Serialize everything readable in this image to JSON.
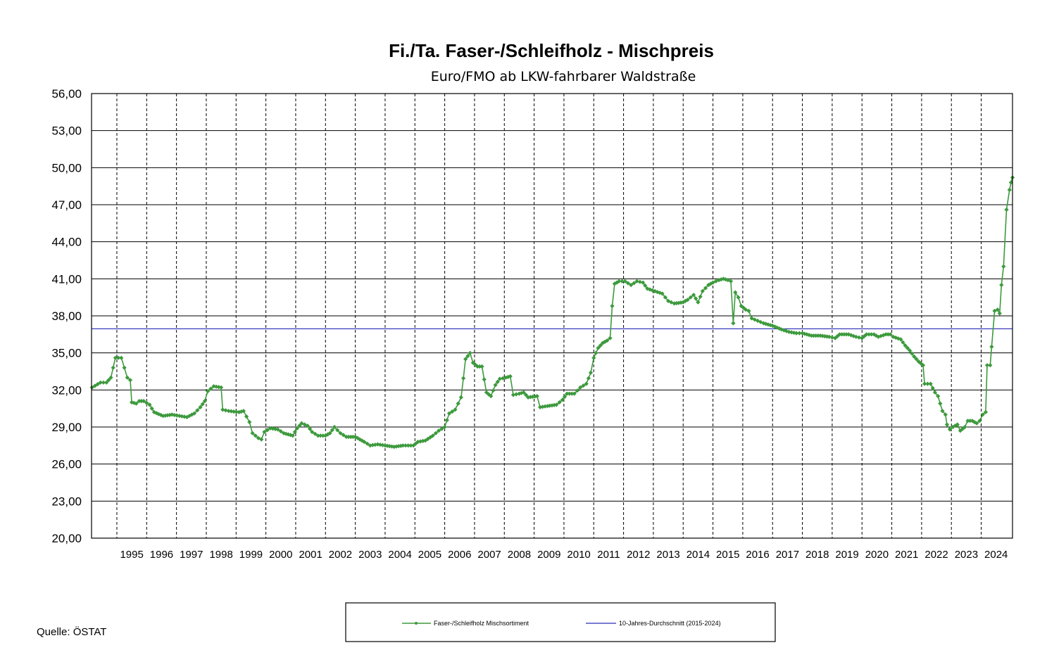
{
  "chart_data": {
    "type": "line",
    "title": "Fi./Ta. Faser-/Schleifholz - Mischpreis",
    "subtitle": "Euro/FMO ab LKW-fahrbarer Waldstraße",
    "xlabel": "",
    "ylabel": "",
    "ylim": [
      20,
      56
    ],
    "xlim": [
      1994.15,
      2025.05
    ],
    "y_ticks": [
      "20,00",
      "23,00",
      "26,00",
      "29,00",
      "32,00",
      "35,00",
      "38,00",
      "41,00",
      "44,00",
      "47,00",
      "50,00",
      "53,00",
      "56,00"
    ],
    "x_ticks": [
      "1995",
      "1996",
      "1997",
      "1998",
      "1999",
      "2000",
      "2001",
      "2002",
      "2003",
      "2004",
      "2005",
      "2006",
      "2007",
      "2008",
      "2009",
      "2010",
      "2011",
      "2012",
      "2013",
      "2014",
      "2015",
      "2016",
      "2017",
      "2018",
      "2019",
      "2020",
      "2021",
      "2022",
      "2023",
      "2024"
    ],
    "grid": true,
    "legend_position": "bottom",
    "source": "Quelle: ÖSTAT",
    "colors": {
      "series": "#3d9a3d",
      "average": "#2b2bb8"
    },
    "series": [
      {
        "name": "Faser-/Schleifholz Mischsortiment",
        "keypoints": [
          [
            1994.17,
            32.2
          ],
          [
            1994.45,
            32.6
          ],
          [
            1994.65,
            32.6
          ],
          [
            1994.8,
            33.0
          ],
          [
            1994.95,
            34.6
          ],
          [
            1995.15,
            34.6
          ],
          [
            1995.25,
            33.8
          ],
          [
            1995.35,
            33.0
          ],
          [
            1995.45,
            32.8
          ],
          [
            1995.5,
            31.0
          ],
          [
            1995.65,
            30.9
          ],
          [
            1995.75,
            31.1
          ],
          [
            1995.9,
            31.1
          ],
          [
            1996.1,
            30.8
          ],
          [
            1996.25,
            30.2
          ],
          [
            1996.55,
            29.9
          ],
          [
            1996.85,
            30.0
          ],
          [
            1997.1,
            29.9
          ],
          [
            1997.35,
            29.8
          ],
          [
            1997.6,
            30.1
          ],
          [
            1997.8,
            30.6
          ],
          [
            1997.95,
            31.1
          ],
          [
            1998.05,
            31.9
          ],
          [
            1998.25,
            32.3
          ],
          [
            1998.5,
            32.2
          ],
          [
            1998.55,
            30.4
          ],
          [
            1998.75,
            30.3
          ],
          [
            1999.1,
            30.2
          ],
          [
            1999.25,
            30.3
          ],
          [
            1999.45,
            29.4
          ],
          [
            1999.55,
            28.5
          ],
          [
            1999.75,
            28.1
          ],
          [
            1999.85,
            28.0
          ],
          [
            1999.95,
            28.6
          ],
          [
            2000.15,
            28.9
          ],
          [
            2000.4,
            28.8
          ],
          [
            2000.6,
            28.5
          ],
          [
            2000.9,
            28.3
          ],
          [
            2001.05,
            28.9
          ],
          [
            2001.2,
            29.3
          ],
          [
            2001.4,
            29.1
          ],
          [
            2001.55,
            28.6
          ],
          [
            2001.75,
            28.3
          ],
          [
            2002.0,
            28.3
          ],
          [
            2002.15,
            28.5
          ],
          [
            2002.3,
            29.0
          ],
          [
            2002.5,
            28.5
          ],
          [
            2002.7,
            28.2
          ],
          [
            2003.0,
            28.2
          ],
          [
            2003.3,
            27.8
          ],
          [
            2003.5,
            27.5
          ],
          [
            2003.75,
            27.6
          ],
          [
            2004.0,
            27.5
          ],
          [
            2004.3,
            27.4
          ],
          [
            2004.6,
            27.5
          ],
          [
            2004.95,
            27.5
          ],
          [
            2005.1,
            27.8
          ],
          [
            2005.35,
            27.9
          ],
          [
            2005.6,
            28.3
          ],
          [
            2005.8,
            28.7
          ],
          [
            2006.0,
            29.0
          ],
          [
            2006.15,
            30.1
          ],
          [
            2006.35,
            30.4
          ],
          [
            2006.55,
            31.4
          ],
          [
            2006.7,
            34.5
          ],
          [
            2006.85,
            35.0
          ],
          [
            2006.95,
            34.2
          ],
          [
            2007.1,
            33.9
          ],
          [
            2007.25,
            33.9
          ],
          [
            2007.4,
            31.8
          ],
          [
            2007.55,
            31.5
          ],
          [
            2007.7,
            32.4
          ],
          [
            2007.85,
            32.9
          ],
          [
            2008.05,
            33.0
          ],
          [
            2008.2,
            33.1
          ],
          [
            2008.3,
            31.6
          ],
          [
            2008.5,
            31.7
          ],
          [
            2008.65,
            31.8
          ],
          [
            2008.8,
            31.4
          ],
          [
            2009.1,
            31.5
          ],
          [
            2009.2,
            30.6
          ],
          [
            2009.45,
            30.7
          ],
          [
            2009.75,
            30.8
          ],
          [
            2009.95,
            31.2
          ],
          [
            2010.1,
            31.7
          ],
          [
            2010.35,
            31.7
          ],
          [
            2010.55,
            32.2
          ],
          [
            2010.75,
            32.5
          ],
          [
            2010.9,
            33.4
          ],
          [
            2011.0,
            34.6
          ],
          [
            2011.15,
            35.4
          ],
          [
            2011.3,
            35.8
          ],
          [
            2011.45,
            36.0
          ],
          [
            2011.55,
            36.2
          ],
          [
            2011.62,
            38.8
          ],
          [
            2011.7,
            40.6
          ],
          [
            2011.85,
            40.8
          ],
          [
            2012.05,
            40.8
          ],
          [
            2012.25,
            40.5
          ],
          [
            2012.45,
            40.8
          ],
          [
            2012.65,
            40.7
          ],
          [
            2012.8,
            40.2
          ],
          [
            2013.05,
            40.0
          ],
          [
            2013.3,
            39.8
          ],
          [
            2013.5,
            39.2
          ],
          [
            2013.7,
            39.0
          ],
          [
            2014.0,
            39.1
          ],
          [
            2014.15,
            39.3
          ],
          [
            2014.35,
            39.7
          ],
          [
            2014.5,
            39.1
          ],
          [
            2014.65,
            40.0
          ],
          [
            2014.85,
            40.5
          ],
          [
            2015.0,
            40.7
          ],
          [
            2015.2,
            40.9
          ],
          [
            2015.35,
            41.0
          ],
          [
            2015.5,
            40.9
          ],
          [
            2015.6,
            40.8
          ],
          [
            2015.68,
            37.4
          ],
          [
            2015.75,
            39.9
          ],
          [
            2015.85,
            39.5
          ],
          [
            2015.95,
            38.8
          ],
          [
            2016.1,
            38.5
          ],
          [
            2016.2,
            38.4
          ],
          [
            2016.3,
            37.8
          ],
          [
            2016.5,
            37.6
          ],
          [
            2016.7,
            37.4
          ],
          [
            2017.0,
            37.2
          ],
          [
            2017.3,
            36.9
          ],
          [
            2017.55,
            36.7
          ],
          [
            2017.8,
            36.6
          ],
          [
            2018.0,
            36.6
          ],
          [
            2018.3,
            36.4
          ],
          [
            2018.6,
            36.4
          ],
          [
            2018.9,
            36.3
          ],
          [
            2019.1,
            36.2
          ],
          [
            2019.25,
            36.5
          ],
          [
            2019.55,
            36.5
          ],
          [
            2019.8,
            36.3
          ],
          [
            2020.0,
            36.2
          ],
          [
            2020.15,
            36.5
          ],
          [
            2020.4,
            36.5
          ],
          [
            2020.55,
            36.3
          ],
          [
            2020.8,
            36.5
          ],
          [
            2020.95,
            36.5
          ],
          [
            2021.05,
            36.3
          ],
          [
            2021.3,
            36.1
          ],
          [
            2021.45,
            35.6
          ],
          [
            2021.6,
            35.2
          ],
          [
            2021.75,
            34.7
          ],
          [
            2021.9,
            34.3
          ],
          [
            2022.05,
            34.0
          ],
          [
            2022.1,
            32.5
          ],
          [
            2022.3,
            32.5
          ],
          [
            2022.45,
            31.8
          ],
          [
            2022.55,
            31.5
          ],
          [
            2022.7,
            30.3
          ],
          [
            2022.8,
            30.0
          ],
          [
            2022.85,
            29.2
          ],
          [
            2022.95,
            28.8
          ],
          [
            2023.05,
            29.0
          ],
          [
            2023.2,
            29.2
          ],
          [
            2023.3,
            28.7
          ],
          [
            2023.45,
            29.0
          ],
          [
            2023.55,
            29.5
          ],
          [
            2023.7,
            29.5
          ],
          [
            2023.85,
            29.3
          ],
          [
            2023.95,
            29.5
          ],
          [
            2024.05,
            30.0
          ],
          [
            2024.15,
            30.2
          ],
          [
            2024.2,
            34.0
          ],
          [
            2024.3,
            34.0
          ],
          [
            2024.35,
            35.5
          ],
          [
            2024.45,
            38.4
          ],
          [
            2024.55,
            38.5
          ],
          [
            2024.62,
            38.2
          ],
          [
            2024.68,
            40.5
          ],
          [
            2024.75,
            42.0
          ],
          [
            2024.85,
            46.6
          ],
          [
            2024.95,
            48.2
          ],
          [
            2025.0,
            48.8
          ],
          [
            2025.05,
            49.2
          ]
        ]
      },
      {
        "name": "10-Jahres-Durchschnitt (2015-2024)",
        "value": 36.95
      }
    ]
  }
}
